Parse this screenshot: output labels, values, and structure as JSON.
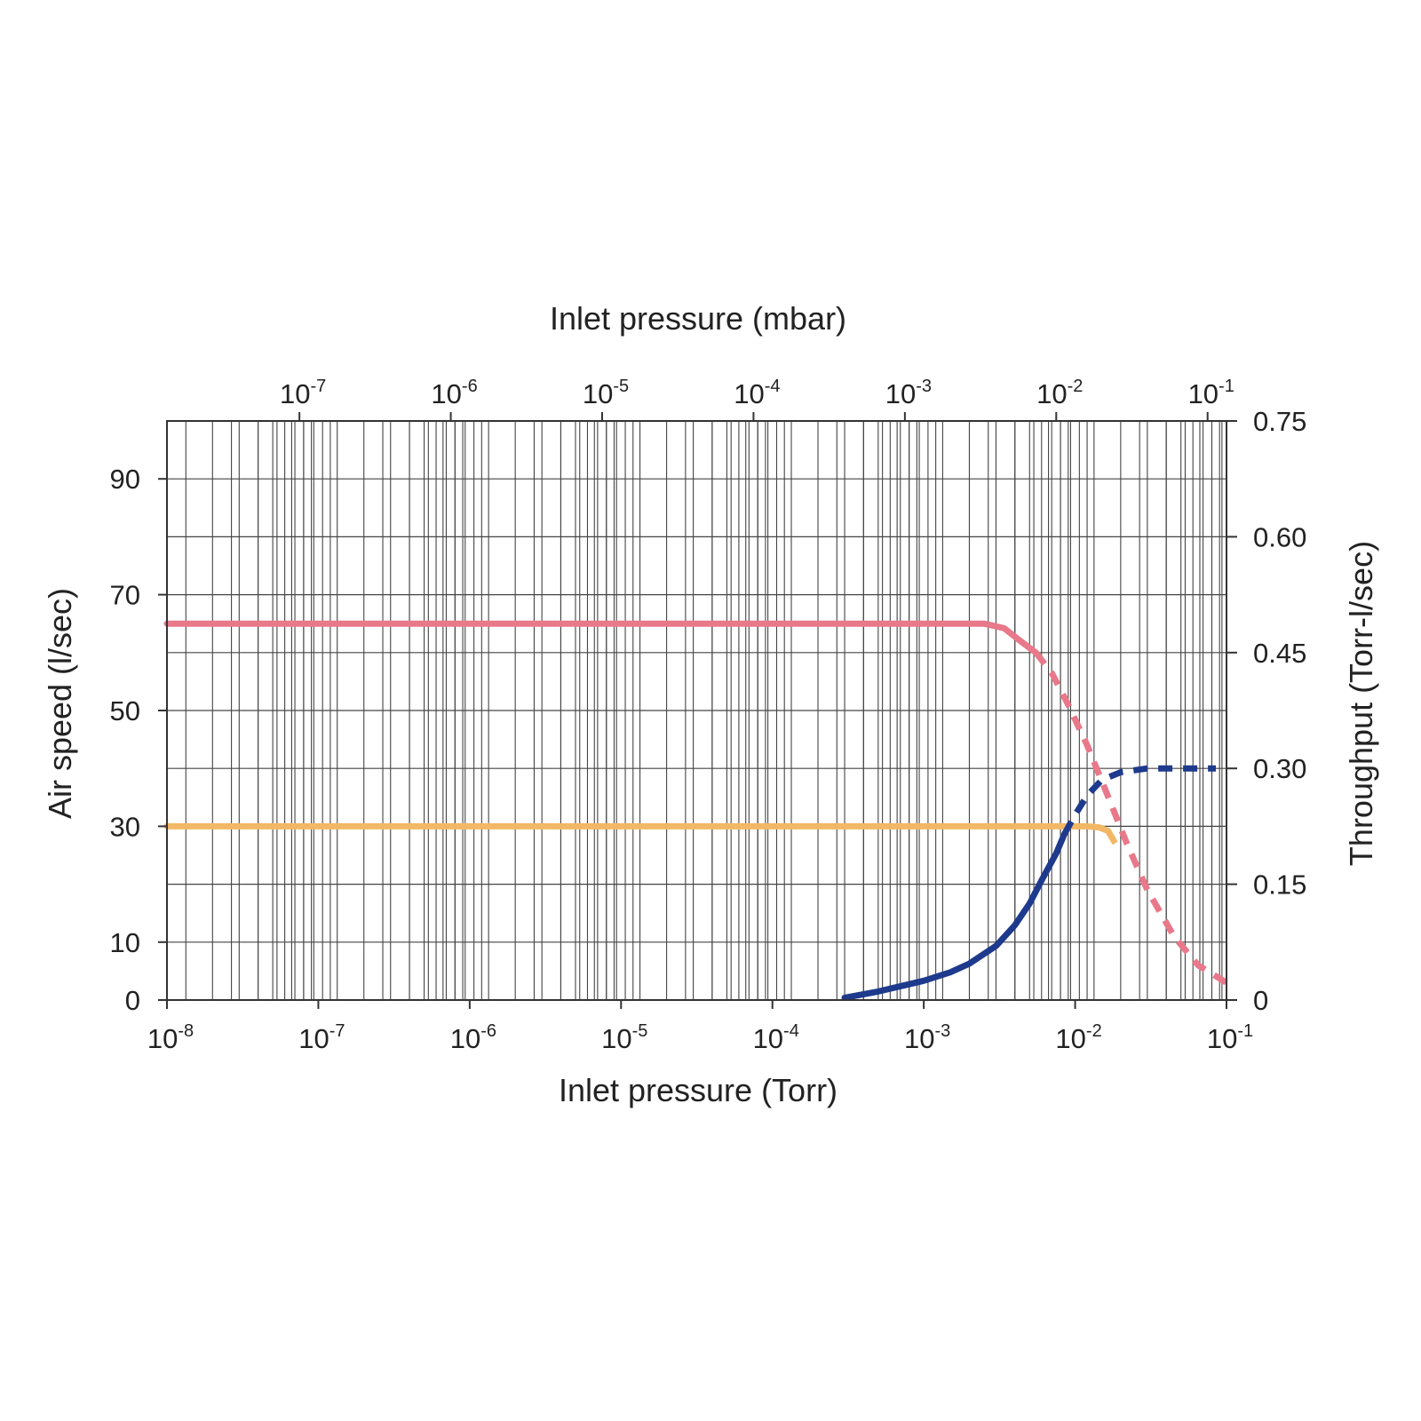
{
  "chart_data": {
    "type": "line",
    "x_bottom": {
      "label": "Inlet pressure (Torr)",
      "scale": "log",
      "range": [
        1e-08,
        0.1
      ],
      "tick_labels": [
        {
          "base": "10",
          "exp": "-8"
        },
        {
          "base": "10",
          "exp": "-7"
        },
        {
          "base": "10",
          "exp": "-6"
        },
        {
          "base": "10",
          "exp": "-5"
        },
        {
          "base": "10",
          "exp": "-4"
        },
        {
          "base": "10",
          "exp": "-3"
        },
        {
          "base": "10",
          "exp": "-2"
        },
        {
          "base": "10",
          "exp": "-1"
        }
      ]
    },
    "x_top": {
      "label": "Inlet pressure (mbar)",
      "scale": "log",
      "tick_labels": [
        {
          "base": "10",
          "exp": "-7"
        },
        {
          "base": "10",
          "exp": "-6"
        },
        {
          "base": "10",
          "exp": "-5"
        },
        {
          "base": "10",
          "exp": "-4"
        },
        {
          "base": "10",
          "exp": "-3"
        },
        {
          "base": "10",
          "exp": "-2"
        },
        {
          "base": "10",
          "exp": "-1"
        }
      ]
    },
    "y_left": {
      "label": "Air speed (l/sec)",
      "range": [
        0,
        100
      ],
      "tick_labels": [
        "0",
        "10",
        "30",
        "50",
        "70",
        "90"
      ]
    },
    "y_right": {
      "label": "Throughput (Torr-l/sec)",
      "range": [
        0,
        0.75
      ],
      "tick_labels": [
        "0",
        "0.15",
        "0.30",
        "0.45",
        "0.60",
        "0.75"
      ]
    },
    "grid": true,
    "series": [
      {
        "axis": "left",
        "color": "#e8788a",
        "solid": [
          [
            1e-08,
            65
          ],
          [
            0.0001,
            65
          ],
          [
            0.0025,
            65
          ],
          [
            0.0034,
            64.2
          ],
          [
            0.0042,
            62.3
          ],
          [
            0.0055,
            60
          ]
        ],
        "dashed": [
          [
            0.0055,
            60
          ],
          [
            0.007,
            56.5
          ],
          [
            0.009,
            51
          ],
          [
            0.012,
            44
          ],
          [
            0.016,
            36
          ],
          [
            0.022,
            27
          ],
          [
            0.03,
            19
          ],
          [
            0.045,
            11
          ],
          [
            0.065,
            6
          ],
          [
            0.1,
            3
          ]
        ]
      },
      {
        "axis": "left",
        "color": "#f2b866",
        "solid": [
          [
            1e-08,
            30
          ],
          [
            0.0001,
            30
          ],
          [
            0.012,
            30
          ],
          [
            0.0145,
            29.8
          ],
          [
            0.0165,
            29.2
          ]
        ],
        "dashed": [
          [
            0.0165,
            29.2
          ],
          [
            0.018,
            27.5
          ],
          [
            0.02,
            25.5
          ]
        ]
      },
      {
        "axis": "right",
        "color": "#1e3a8c",
        "solid": [
          [
            0.0003,
            0.003
          ],
          [
            0.0005,
            0.011
          ],
          [
            0.001,
            0.025
          ],
          [
            0.0015,
            0.036
          ],
          [
            0.002,
            0.047
          ],
          [
            0.003,
            0.07
          ],
          [
            0.004,
            0.097
          ],
          [
            0.005,
            0.125
          ],
          [
            0.006,
            0.155
          ],
          [
            0.0075,
            0.19
          ],
          [
            0.0085,
            0.215
          ]
        ],
        "dashed": [
          [
            0.0085,
            0.215
          ],
          [
            0.01,
            0.24
          ],
          [
            0.012,
            0.265
          ],
          [
            0.015,
            0.285
          ],
          [
            0.02,
            0.295
          ],
          [
            0.03,
            0.3
          ],
          [
            0.085,
            0.3
          ]
        ]
      }
    ]
  }
}
